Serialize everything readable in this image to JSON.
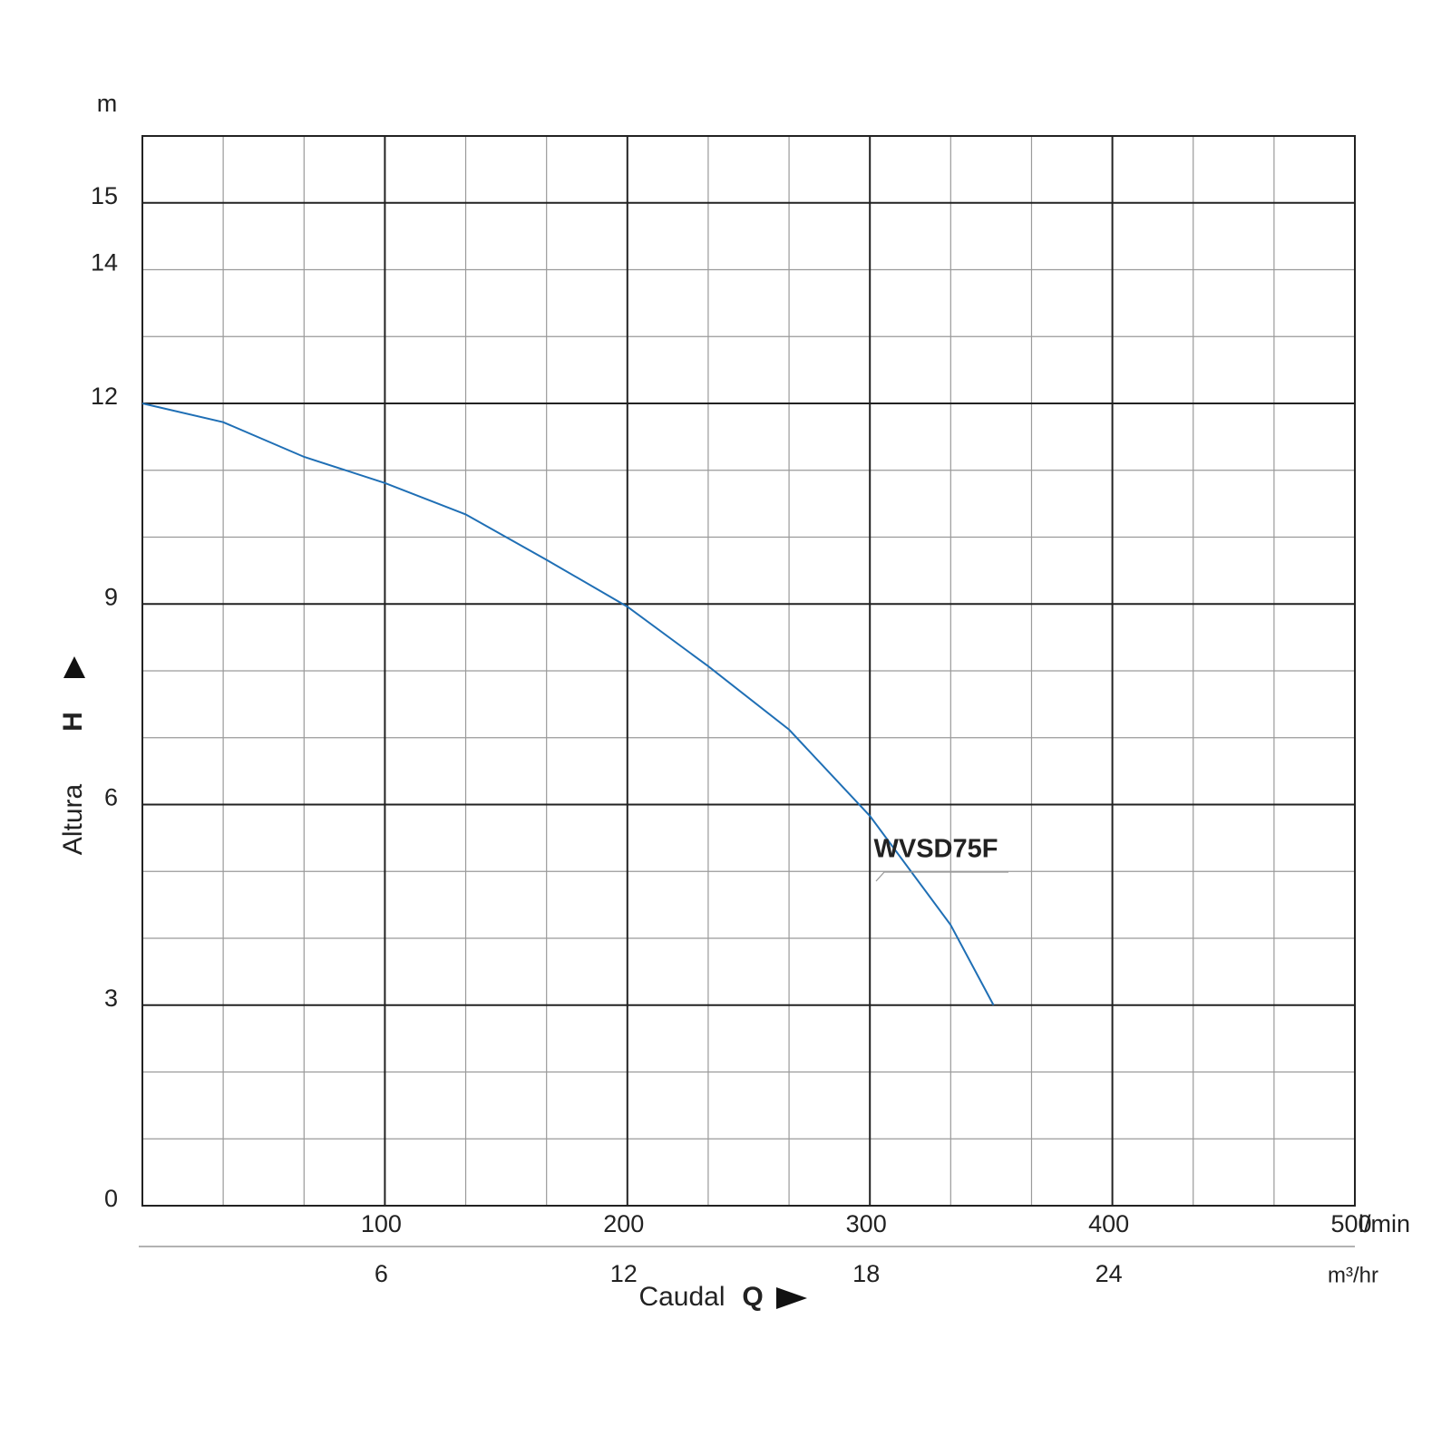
{
  "chart_data": {
    "type": "line",
    "y_unit": "m",
    "x_unit": "l/min",
    "x2_unit": "m³/hr",
    "ylabel": "Altura",
    "ylabel_symbol": "H",
    "xlabel": "Caudal",
    "xlabel_symbol": "Q",
    "x": [
      0,
      33.3,
      66.7,
      100,
      133.3,
      166.7,
      200,
      233.3,
      266.7,
      300,
      333.3,
      351
    ],
    "series": [
      {
        "name": "WVSD75F",
        "color": "#1f6fb5",
        "values": [
          12,
          11.72,
          11.2,
          10.81,
          10.34,
          9.66,
          8.96,
          8.07,
          7.12,
          5.83,
          4.2,
          3.0
        ]
      }
    ],
    "xlim": [
      0,
      500
    ],
    "xticks": [
      100,
      200,
      300,
      400,
      500
    ],
    "minor_xticks": [
      33.33,
      66.67,
      133.33,
      166.67,
      233.33,
      266.67,
      333.33,
      366.67,
      433.33,
      466.67
    ],
    "x2lim": [
      0,
      30
    ],
    "x2ticks": [
      6,
      12,
      18,
      24
    ],
    "ylim": [
      0,
      16
    ],
    "yticks": [
      0,
      3,
      6,
      9,
      12,
      14,
      15
    ],
    "minor_yticks": [
      1,
      2,
      4,
      5,
      7,
      8,
      10,
      11,
      13,
      14,
      15
    ],
    "grid": true
  }
}
